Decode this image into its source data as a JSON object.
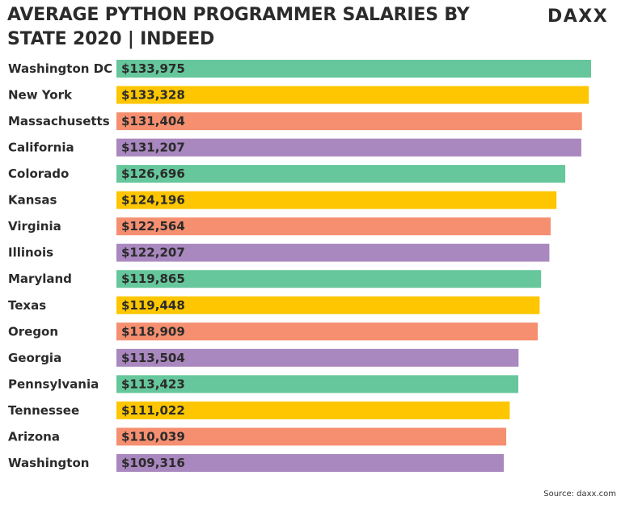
{
  "header": {
    "title": "AVERAGE PYTHON PROGRAMMER SALARIES BY STATE 2020 | INDEED",
    "logo": "DAXX"
  },
  "footer": {
    "source": "Source: daxx.com"
  },
  "colors": [
    "#65c79b",
    "#fdc600",
    "#f58f70",
    "#a987bf"
  ],
  "chart_data": {
    "type": "bar",
    "orientation": "horizontal",
    "title": "AVERAGE PYTHON PROGRAMMER SALARIES BY STATE 2020 | INDEED",
    "xlabel": "",
    "ylabel": "",
    "grid": false,
    "xlim": [
      0,
      138000
    ],
    "categories": [
      "Washington DC",
      "New York",
      "Massachusetts",
      "California",
      "Colorado",
      "Kansas",
      "Virginia",
      "Illinois",
      "Maryland",
      "Texas",
      "Oregon",
      "Georgia",
      "Pennsylvania",
      "Tennessee",
      "Arizona",
      "Washington"
    ],
    "values": [
      133975,
      133328,
      131404,
      131207,
      126696,
      124196,
      122564,
      122207,
      119865,
      119448,
      118909,
      113504,
      113423,
      111022,
      110039,
      109316
    ],
    "value_labels": [
      "$133,975",
      "$133,328",
      "$131,404",
      "$131,207",
      "$126,696",
      "$124,196",
      "$122,564",
      "$122,207",
      "$119,865",
      "$119,448",
      "$118,909",
      "$113,504",
      "$113,423",
      "$111,022",
      "$110,039",
      "$109,316"
    ]
  }
}
